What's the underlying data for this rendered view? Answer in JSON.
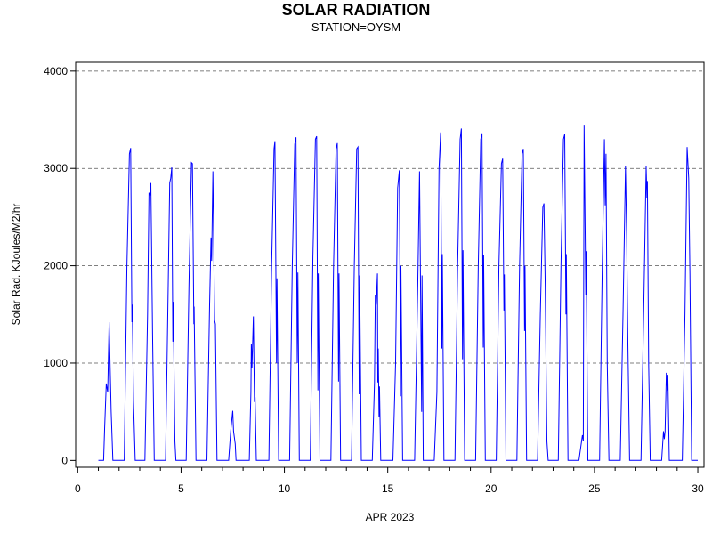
{
  "chart_data": {
    "type": "line",
    "title": "SOLAR RADIATION",
    "subtitle": "STATION=OYSM",
    "xlabel": "APR 2023",
    "ylabel": "Solar Rad. KJoules/M2/hr",
    "xlim": [
      -0.1,
      30.3
    ],
    "ylim": [
      -70,
      4090
    ],
    "x_ticks": [
      0,
      5,
      10,
      15,
      20,
      25,
      30
    ],
    "x_minor_step": 1,
    "y_ticks": [
      0,
      1000,
      2000,
      3000,
      4000
    ],
    "grid": "horizontal dashed",
    "series": [
      {
        "color": "#0000ff",
        "daily": [
          {
            "day": 1,
            "peak": 1420,
            "shape": [
              [
                0.25,
                0
              ],
              [
                0.3,
                320
              ],
              [
                0.38,
                790
              ],
              [
                0.45,
                700
              ],
              [
                0.52,
                1420
              ],
              [
                0.62,
                500
              ],
              [
                0.7,
                0
              ]
            ]
          },
          {
            "day": 2,
            "peak": 3210,
            "shape": [
              [
                0.25,
                0
              ],
              [
                0.38,
                2000
              ],
              [
                0.5,
                3150
              ],
              [
                0.56,
                3210
              ],
              [
                0.62,
                1420
              ],
              [
                0.64,
                1600
              ],
              [
                0.7,
                600
              ],
              [
                0.78,
                0
              ]
            ]
          },
          {
            "day": 3,
            "peak": 2850,
            "shape": [
              [
                0.25,
                0
              ],
              [
                0.38,
                1500
              ],
              [
                0.45,
                2750
              ],
              [
                0.5,
                2720
              ],
              [
                0.54,
                2850
              ],
              [
                0.62,
                1300
              ],
              [
                0.7,
                0
              ]
            ]
          },
          {
            "day": 4,
            "peak": 3010,
            "shape": [
              [
                0.25,
                0
              ],
              [
                0.38,
                1800
              ],
              [
                0.45,
                2850
              ],
              [
                0.5,
                2900
              ],
              [
                0.55,
                3010
              ],
              [
                0.6,
                1220
              ],
              [
                0.62,
                1630
              ],
              [
                0.7,
                200
              ],
              [
                0.75,
                0
              ]
            ]
          },
          {
            "day": 5,
            "peak": 3060,
            "shape": [
              [
                0.25,
                0
              ],
              [
                0.38,
                1800
              ],
              [
                0.5,
                3060
              ],
              [
                0.55,
                3050
              ],
              [
                0.62,
                1400
              ],
              [
                0.63,
                1580
              ],
              [
                0.72,
                0
              ]
            ]
          },
          {
            "day": 6,
            "peak": 2970,
            "shape": [
              [
                0.25,
                0
              ],
              [
                0.38,
                1600
              ],
              [
                0.45,
                2290
              ],
              [
                0.48,
                2050
              ],
              [
                0.54,
                2970
              ],
              [
                0.62,
                1440
              ],
              [
                0.66,
                1400
              ],
              [
                0.74,
                0
              ]
            ]
          },
          {
            "day": 7,
            "peak": 510,
            "shape": [
              [
                0.3,
                0
              ],
              [
                0.4,
                300
              ],
              [
                0.5,
                510
              ],
              [
                0.54,
                300
              ],
              [
                0.62,
                170
              ],
              [
                0.66,
                0
              ]
            ]
          },
          {
            "day": 8,
            "peak": 1480,
            "shape": [
              [
                0.3,
                0
              ],
              [
                0.38,
                700
              ],
              [
                0.4,
                1200
              ],
              [
                0.43,
                950
              ],
              [
                0.5,
                1480
              ],
              [
                0.55,
                600
              ],
              [
                0.58,
                650
              ],
              [
                0.64,
                0
              ]
            ]
          },
          {
            "day": 9,
            "peak": 3280,
            "shape": [
              [
                0.25,
                0
              ],
              [
                0.38,
                2000
              ],
              [
                0.5,
                3200
              ],
              [
                0.54,
                3280
              ],
              [
                0.62,
                1000
              ],
              [
                0.64,
                1870
              ],
              [
                0.72,
                0
              ]
            ]
          },
          {
            "day": 10,
            "peak": 3320,
            "shape": [
              [
                0.25,
                0
              ],
              [
                0.38,
                2000
              ],
              [
                0.5,
                3250
              ],
              [
                0.56,
                3320
              ],
              [
                0.62,
                1000
              ],
              [
                0.65,
                1930
              ],
              [
                0.72,
                0
              ]
            ]
          },
          {
            "day": 11,
            "peak": 3330,
            "shape": [
              [
                0.25,
                0
              ],
              [
                0.38,
                2100
              ],
              [
                0.5,
                3300
              ],
              [
                0.56,
                3330
              ],
              [
                0.62,
                720
              ],
              [
                0.64,
                1920
              ],
              [
                0.72,
                0
              ]
            ]
          },
          {
            "day": 12,
            "peak": 3260,
            "shape": [
              [
                0.25,
                0
              ],
              [
                0.38,
                2000
              ],
              [
                0.5,
                3200
              ],
              [
                0.56,
                3260
              ],
              [
                0.62,
                810
              ],
              [
                0.64,
                1920
              ],
              [
                0.72,
                0
              ]
            ]
          },
          {
            "day": 13,
            "peak": 3220,
            "shape": [
              [
                0.25,
                0
              ],
              [
                0.38,
                2000
              ],
              [
                0.5,
                3200
              ],
              [
                0.56,
                3220
              ],
              [
                0.62,
                680
              ],
              [
                0.64,
                1900
              ],
              [
                0.72,
                0
              ]
            ]
          },
          {
            "day": 14,
            "peak": 1920,
            "shape": [
              [
                0.25,
                0
              ],
              [
                0.36,
                800
              ],
              [
                0.4,
                1700
              ],
              [
                0.44,
                1600
              ],
              [
                0.5,
                1920
              ],
              [
                0.52,
                800
              ],
              [
                0.54,
                1150
              ],
              [
                0.58,
                450
              ],
              [
                0.6,
                760
              ],
              [
                0.66,
                0
              ]
            ]
          },
          {
            "day": 15,
            "peak": 2980,
            "shape": [
              [
                0.25,
                0
              ],
              [
                0.38,
                1000
              ],
              [
                0.48,
                2800
              ],
              [
                0.56,
                2980
              ],
              [
                0.62,
                660
              ],
              [
                0.64,
                2000
              ],
              [
                0.72,
                0
              ]
            ]
          },
          {
            "day": 16,
            "peak": 2970,
            "shape": [
              [
                0.3,
                0
              ],
              [
                0.45,
                1800
              ],
              [
                0.54,
                2970
              ],
              [
                0.6,
                1500
              ],
              [
                0.64,
                500
              ],
              [
                0.66,
                1900
              ],
              [
                0.72,
                0
              ]
            ]
          },
          {
            "day": 17,
            "peak": 3370,
            "shape": [
              [
                0.25,
                0
              ],
              [
                0.38,
                700
              ],
              [
                0.48,
                3000
              ],
              [
                0.56,
                3370
              ],
              [
                0.62,
                1150
              ],
              [
                0.64,
                2120
              ],
              [
                0.72,
                0
              ]
            ]
          },
          {
            "day": 18,
            "peak": 3410,
            "shape": [
              [
                0.25,
                0
              ],
              [
                0.38,
                2000
              ],
              [
                0.5,
                3300
              ],
              [
                0.56,
                3410
              ],
              [
                0.62,
                1040
              ],
              [
                0.64,
                2160
              ],
              [
                0.72,
                0
              ]
            ]
          },
          {
            "day": 19,
            "peak": 3360,
            "shape": [
              [
                0.25,
                0
              ],
              [
                0.38,
                2000
              ],
              [
                0.5,
                3300
              ],
              [
                0.56,
                3360
              ],
              [
                0.62,
                1160
              ],
              [
                0.64,
                2110
              ],
              [
                0.72,
                0
              ]
            ]
          },
          {
            "day": 20,
            "peak": 3100,
            "shape": [
              [
                0.25,
                0
              ],
              [
                0.38,
                2000
              ],
              [
                0.5,
                3050
              ],
              [
                0.56,
                3100
              ],
              [
                0.62,
                1540
              ],
              [
                0.64,
                1910
              ],
              [
                0.72,
                0
              ]
            ]
          },
          {
            "day": 21,
            "peak": 3200,
            "shape": [
              [
                0.25,
                0
              ],
              [
                0.38,
                2000
              ],
              [
                0.5,
                3150
              ],
              [
                0.56,
                3200
              ],
              [
                0.62,
                1330
              ],
              [
                0.64,
                2000
              ],
              [
                0.72,
                0
              ]
            ]
          },
          {
            "day": 22,
            "peak": 2640,
            "shape": [
              [
                0.25,
                0
              ],
              [
                0.38,
                1500
              ],
              [
                0.5,
                2600
              ],
              [
                0.56,
                2640
              ],
              [
                0.62,
                1800
              ],
              [
                0.7,
                200
              ],
              [
                0.76,
                0
              ]
            ]
          },
          {
            "day": 23,
            "peak": 3350,
            "shape": [
              [
                0.25,
                0
              ],
              [
                0.38,
                2000
              ],
              [
                0.5,
                3300
              ],
              [
                0.56,
                3350
              ],
              [
                0.62,
                1500
              ],
              [
                0.64,
                2120
              ],
              [
                0.72,
                0
              ]
            ]
          },
          {
            "day": 24,
            "peak": 3440,
            "shape": [
              [
                0.25,
                0
              ],
              [
                0.38,
                200
              ],
              [
                0.42,
                260
              ],
              [
                0.46,
                200
              ],
              [
                0.5,
                3440
              ],
              [
                0.58,
                1700
              ],
              [
                0.6,
                2150
              ],
              [
                0.68,
                0
              ]
            ]
          },
          {
            "day": 25,
            "peak": 3300,
            "shape": [
              [
                0.25,
                0
              ],
              [
                0.38,
                2000
              ],
              [
                0.48,
                3300
              ],
              [
                0.52,
                2620
              ],
              [
                0.56,
                3150
              ],
              [
                0.62,
                1000
              ],
              [
                0.7,
                0
              ]
            ]
          },
          {
            "day": 26,
            "peak": 3020,
            "shape": [
              [
                0.25,
                0
              ],
              [
                0.38,
                1500
              ],
              [
                0.5,
                3020
              ],
              [
                0.56,
                2300
              ],
              [
                0.62,
                1200
              ],
              [
                0.7,
                0
              ]
            ]
          },
          {
            "day": 27,
            "peak": 3020,
            "shape": [
              [
                0.25,
                0
              ],
              [
                0.38,
                1500
              ],
              [
                0.5,
                3020
              ],
              [
                0.54,
                2700
              ],
              [
                0.56,
                2870
              ],
              [
                0.62,
                1000
              ],
              [
                0.7,
                0
              ]
            ]
          },
          {
            "day": 28,
            "peak": 900,
            "shape": [
              [
                0.25,
                0
              ],
              [
                0.34,
                300
              ],
              [
                0.38,
                220
              ],
              [
                0.42,
                300
              ],
              [
                0.48,
                900
              ],
              [
                0.52,
                720
              ],
              [
                0.55,
                880
              ],
              [
                0.62,
                0
              ]
            ]
          },
          {
            "day": 29,
            "peak": 3220,
            "shape": [
              [
                0.25,
                0
              ],
              [
                0.38,
                1500
              ],
              [
                0.48,
                3220
              ],
              [
                0.56,
                2900
              ],
              [
                0.62,
                1900
              ],
              [
                0.7,
                0
              ]
            ]
          }
        ]
      }
    ]
  }
}
